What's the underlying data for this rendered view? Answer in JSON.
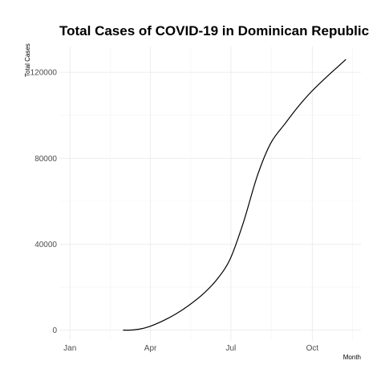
{
  "chart_data": {
    "type": "line",
    "title": "Total Cases of COVID-19 in Dominican Republic",
    "xlabel": "Month",
    "ylabel": "Total Cases",
    "x_ticks": [
      {
        "label": "Jan",
        "date": "2020-01-01"
      },
      {
        "label": "Apr",
        "date": "2020-04-01"
      },
      {
        "label": "Jul",
        "date": "2020-07-01"
      },
      {
        "label": "Oct",
        "date": "2020-10-01"
      }
    ],
    "y_ticks": [
      {
        "label": "0",
        "value": 0
      },
      {
        "label": "40000",
        "value": 40000
      },
      {
        "label": "80000",
        "value": 80000
      },
      {
        "label": "120000",
        "value": 120000
      }
    ],
    "xlim": [
      "2019-12-20",
      "2020-11-25"
    ],
    "ylim": [
      -5000,
      132000
    ],
    "grid": true,
    "series": [
      {
        "color": "#000000",
        "x": [
          "2020-03-01",
          "2020-03-10",
          "2020-03-20",
          "2020-03-31",
          "2020-04-15",
          "2020-04-30",
          "2020-05-15",
          "2020-05-31",
          "2020-06-15",
          "2020-06-30",
          "2020-07-15",
          "2020-07-31",
          "2020-08-15",
          "2020-08-31",
          "2020-09-15",
          "2020-09-30",
          "2020-10-15",
          "2020-10-31",
          "2020-11-08"
        ],
        "y": [
          0,
          50,
          500,
          1700,
          4300,
          7600,
          11700,
          17000,
          23500,
          33000,
          50000,
          72000,
          87000,
          96000,
          104000,
          111000,
          117000,
          123000,
          126000
        ]
      }
    ]
  }
}
